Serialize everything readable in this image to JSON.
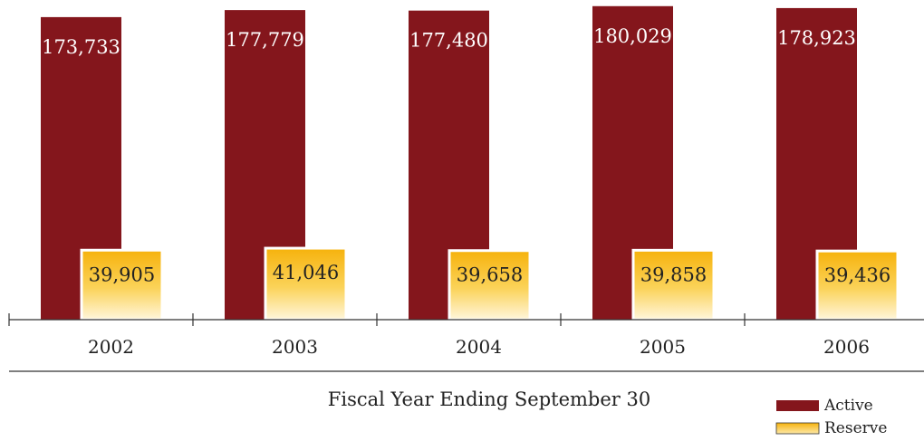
{
  "chart_data": {
    "type": "bar",
    "categories": [
      "2002",
      "2003",
      "2004",
      "2005",
      "2006"
    ],
    "series": [
      {
        "name": "Active",
        "color": "#84161c",
        "values": [
          173733,
          177779,
          177480,
          180029,
          178923
        ],
        "labels": [
          "173,733",
          "177,779",
          "177,480",
          "180,029",
          "178,923"
        ]
      },
      {
        "name": "Reserve",
        "color": "#f8b614",
        "values": [
          39905,
          41046,
          39658,
          39858,
          39436
        ],
        "labels": [
          "39,905",
          "41,046",
          "39,658",
          "39,858",
          "39,436"
        ]
      }
    ],
    "title": "",
    "xlabel": "Fiscal Year Ending September 30",
    "ylabel": "",
    "ylim": [
      0,
      182000
    ],
    "grid": false,
    "legend": "bottom-right"
  }
}
